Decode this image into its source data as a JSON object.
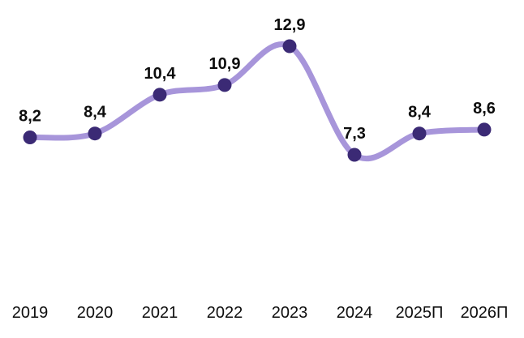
{
  "chart_data": {
    "type": "line",
    "title": "",
    "xlabel": "",
    "ylabel": "",
    "categories": [
      "2019",
      "2020",
      "2021",
      "2022",
      "2023",
      "2024",
      "2025П",
      "2026П"
    ],
    "series": [
      {
        "name": "value",
        "values": [
          8.2,
          8.4,
          10.4,
          10.9,
          12.9,
          7.3,
          8.4,
          8.6
        ],
        "value_labels": [
          "8,2",
          "8,4",
          "10,4",
          "10,9",
          "12,9",
          "7,3",
          "8,4",
          "8,6"
        ]
      }
    ],
    "ylim": [
      0,
      15
    ],
    "grid": false,
    "legend": "none",
    "smooth": true,
    "decimal_separator": ",",
    "colors": {
      "line": "#a795da",
      "marker": "#3b2a75",
      "value_label": "#0d0d0d",
      "axis_label": "#0d0d0d",
      "background": "#ffffff"
    }
  }
}
